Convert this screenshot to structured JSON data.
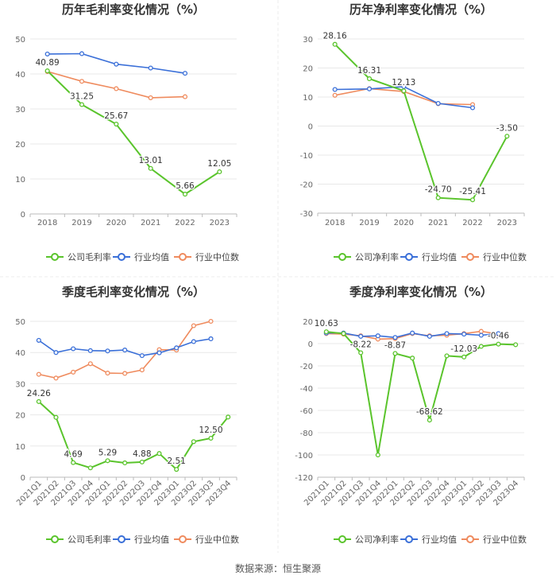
{
  "colors": {
    "company": "#5ac42c",
    "avg": "#3a6fd8",
    "median": "#ef8b5e",
    "grid": "#e8e8e8",
    "axis_text": "#666666",
    "title": "#333333"
  },
  "footer": "数据来源：恒生聚源",
  "chart_data": [
    {
      "type": "line",
      "title": "历年毛利率变化情况（%）",
      "categories": [
        "2018",
        "2019",
        "2020",
        "2021",
        "2022",
        "2023"
      ],
      "ylim": [
        0,
        50
      ],
      "yticks": [
        0,
        10,
        20,
        30,
        40,
        50
      ],
      "rotate_x": false,
      "series": [
        {
          "name": "公司毛利率",
          "key": "company",
          "values": [
            40.89,
            31.25,
            25.67,
            13.01,
            5.66,
            12.05
          ]
        },
        {
          "name": "行业均值",
          "key": "avg",
          "values": [
            45.7,
            45.8,
            42.8,
            41.7,
            40.2,
            null
          ]
        },
        {
          "name": "行业中位数",
          "key": "median",
          "values": [
            40.7,
            37.9,
            35.8,
            33.2,
            33.5,
            null
          ]
        }
      ],
      "labels": [
        {
          "i": 0,
          "text": "40.89",
          "pos": "above"
        },
        {
          "i": 1,
          "text": "31.25",
          "pos": "above"
        },
        {
          "i": 2,
          "text": "25.67",
          "pos": "above"
        },
        {
          "i": 3,
          "text": "13.01",
          "pos": "above"
        },
        {
          "i": 4,
          "text": "5.66",
          "pos": "above"
        },
        {
          "i": 5,
          "text": "12.05",
          "pos": "above"
        }
      ]
    },
    {
      "type": "line",
      "title": "历年净利率变化情况（%）",
      "categories": [
        "2018",
        "2019",
        "2020",
        "2021",
        "2022",
        "2023"
      ],
      "ylim": [
        -30,
        30
      ],
      "yticks": [
        -30,
        -20,
        -10,
        0,
        10,
        20,
        30
      ],
      "rotate_x": false,
      "series": [
        {
          "name": "公司净利率",
          "key": "company",
          "values": [
            28.16,
            16.31,
            12.13,
            -24.7,
            -25.41,
            -3.5
          ]
        },
        {
          "name": "行业均值",
          "key": "avg",
          "values": [
            12.6,
            12.8,
            13.6,
            7.8,
            6.3,
            null
          ]
        },
        {
          "name": "行业中位数",
          "key": "median",
          "values": [
            10.6,
            12.9,
            11.9,
            7.7,
            7.4,
            null
          ]
        }
      ],
      "labels": [
        {
          "i": 0,
          "text": "28.16",
          "pos": "above"
        },
        {
          "i": 1,
          "text": "16.31",
          "pos": "above"
        },
        {
          "i": 2,
          "text": "12.13",
          "pos": "above"
        },
        {
          "i": 3,
          "text": "-24.70",
          "pos": "above"
        },
        {
          "i": 4,
          "text": "-25.41",
          "pos": "above"
        },
        {
          "i": 5,
          "text": "-3.50",
          "pos": "above"
        }
      ]
    },
    {
      "type": "line",
      "title": "季度毛利率变化情况（%）",
      "categories": [
        "2021Q1",
        "2021Q2",
        "2021Q3",
        "2021Q4",
        "2022Q1",
        "2022Q2",
        "2022Q3",
        "2022Q4",
        "2023Q1",
        "2023Q2",
        "2023Q3",
        "2023Q4"
      ],
      "ylim": [
        0,
        50
      ],
      "yticks": [
        0,
        10,
        20,
        30,
        40,
        50
      ],
      "rotate_x": true,
      "series": [
        {
          "name": "公司毛利率",
          "key": "company",
          "values": [
            24.26,
            19.2,
            4.69,
            3.0,
            5.29,
            4.6,
            4.88,
            7.6,
            2.51,
            11.4,
            12.5,
            19.3
          ]
        },
        {
          "name": "行业均值",
          "key": "avg",
          "values": [
            43.9,
            40.0,
            41.2,
            40.6,
            40.5,
            40.8,
            39.0,
            39.9,
            41.5,
            43.5,
            44.4,
            null
          ]
        },
        {
          "name": "行业中位数",
          "key": "median",
          "values": [
            33.0,
            31.8,
            33.7,
            36.4,
            33.4,
            33.3,
            34.4,
            40.9,
            40.8,
            48.6,
            50.0,
            null
          ]
        }
      ],
      "labels": [
        {
          "i": 0,
          "text": "24.26",
          "pos": "above"
        },
        {
          "i": 2,
          "text": "4.69",
          "pos": "above"
        },
        {
          "i": 4,
          "text": "5.29",
          "pos": "above"
        },
        {
          "i": 6,
          "text": "4.88",
          "pos": "above"
        },
        {
          "i": 8,
          "text": "2.51",
          "pos": "above"
        },
        {
          "i": 10,
          "text": "12.50",
          "pos": "above"
        }
      ]
    },
    {
      "type": "line",
      "title": "季度净利率变化情况（%）",
      "categories": [
        "2021Q1",
        "2021Q2",
        "2021Q3",
        "2021Q4",
        "2022Q1",
        "2022Q2",
        "2022Q3",
        "2022Q4",
        "2023Q1",
        "2023Q2",
        "2023Q3",
        "2023Q4"
      ],
      "ylim": [
        -120,
        20
      ],
      "yticks": [
        -120,
        -100,
        -80,
        -60,
        -40,
        -20,
        0,
        20
      ],
      "rotate_x": true,
      "series": [
        {
          "name": "公司净利率",
          "key": "company",
          "values": [
            10.63,
            9.0,
            -8.22,
            -100.0,
            -8.87,
            -13.0,
            -68.62,
            -11.0,
            -12.03,
            -2.5,
            -0.46,
            -1.0
          ]
        },
        {
          "name": "行业均值",
          "key": "avg",
          "values": [
            9.5,
            9.5,
            6.5,
            7.0,
            5.5,
            9.5,
            6.5,
            9.0,
            8.5,
            7.5,
            9.0,
            null
          ]
        },
        {
          "name": "行业中位数",
          "key": "median",
          "values": [
            9.0,
            8.5,
            7.0,
            4.0,
            4.5,
            9.0,
            7.0,
            7.5,
            9.0,
            11.0,
            8.5,
            null
          ]
        }
      ],
      "labels": [
        {
          "i": 0,
          "text": "10.63",
          "pos": "above"
        },
        {
          "i": 2,
          "text": "-8.22",
          "pos": "above"
        },
        {
          "i": 4,
          "text": "-8.87",
          "pos": "above"
        },
        {
          "i": 6,
          "text": "-68.62",
          "pos": "above"
        },
        {
          "i": 8,
          "text": "-12.03",
          "pos": "above"
        },
        {
          "i": 10,
          "text": "-0.46",
          "pos": "above"
        }
      ]
    }
  ]
}
